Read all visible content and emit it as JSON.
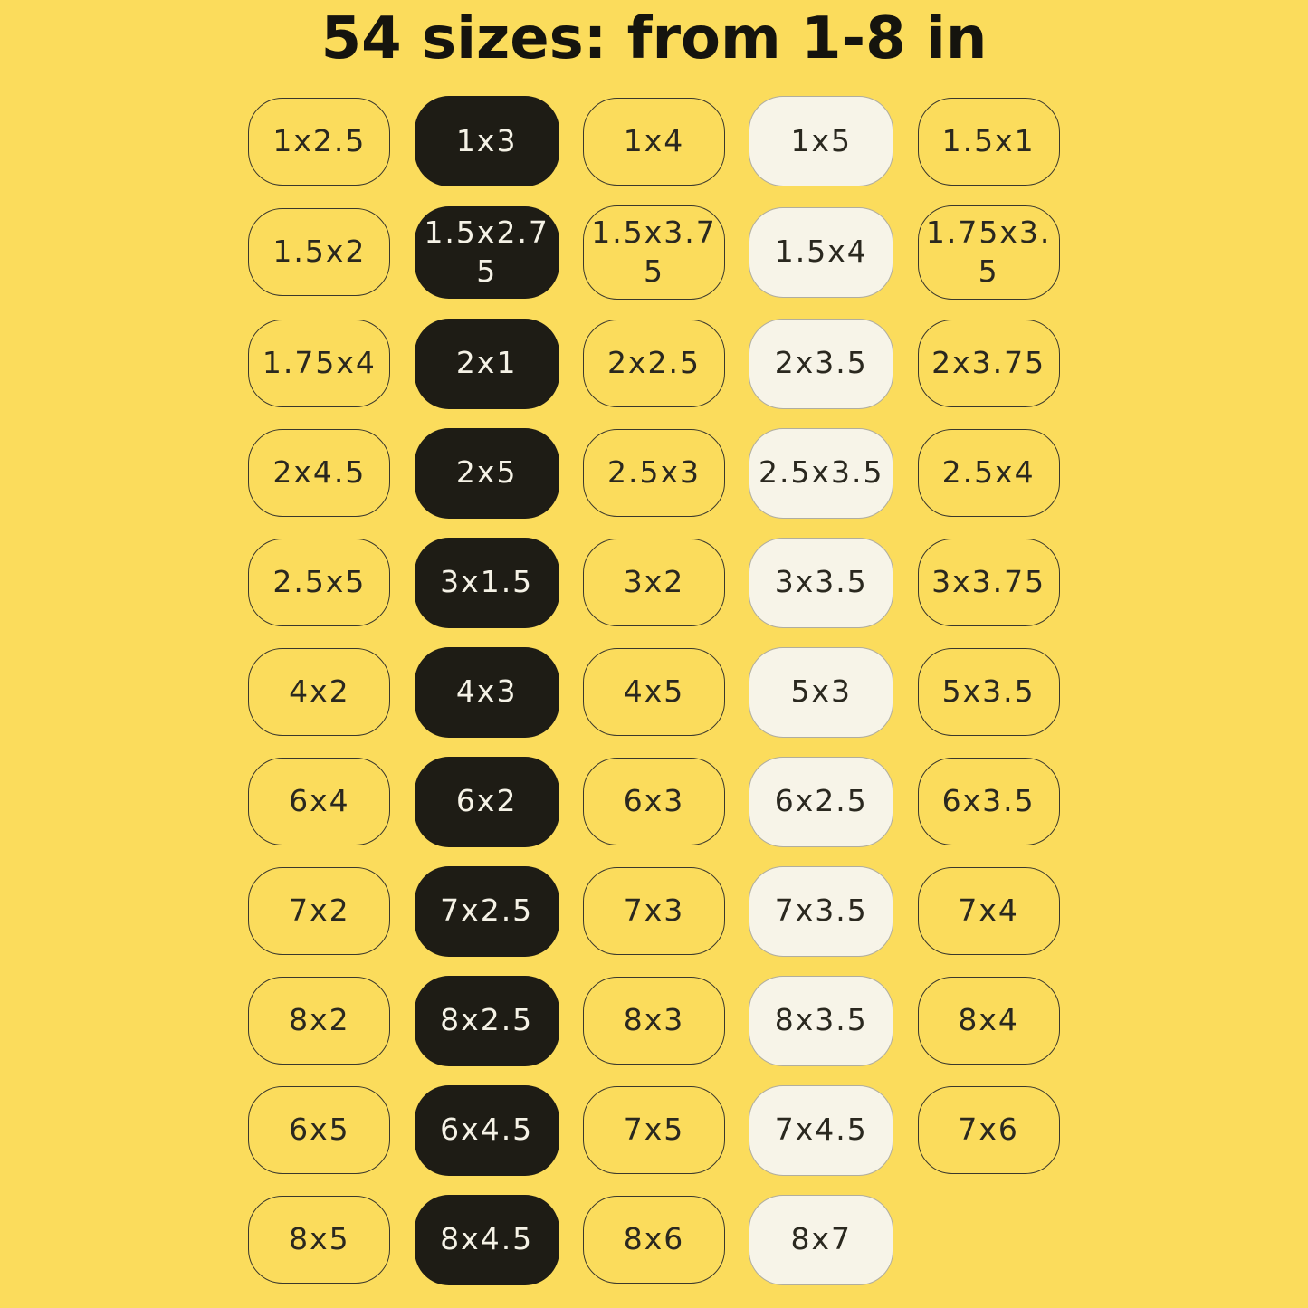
{
  "title": "54 sizes: from 1-8 in",
  "colors": {
    "background": "#FBDC5C",
    "pill_dark_bg": "#1E1C15",
    "pill_dark_text": "#F5F2E6",
    "pill_cream_bg": "#F7F4E8",
    "pill_outline_border": "#3A382C",
    "pill_text": "#2A281F",
    "title_text": "#15140E"
  },
  "grid": {
    "rows": [
      {
        "cells": [
          {
            "label": "1x2.5",
            "variant": "outline"
          },
          {
            "label": "1x3",
            "variant": "dark"
          },
          {
            "label": "1x4",
            "variant": "outline"
          },
          {
            "label": "1x5",
            "variant": "cream"
          },
          {
            "label": "1.5x1",
            "variant": "outline"
          }
        ]
      },
      {
        "cells": [
          {
            "label": "1.5x2",
            "variant": "outline"
          },
          {
            "label": "1.5x2.75",
            "variant": "dark"
          },
          {
            "label": "1.5x3.75",
            "variant": "outline"
          },
          {
            "label": "1.5x4",
            "variant": "cream"
          },
          {
            "label": "1.75x3.5",
            "variant": "outline"
          }
        ]
      },
      {
        "cells": [
          {
            "label": "1.75x4",
            "variant": "outline"
          },
          {
            "label": "2x1",
            "variant": "dark"
          },
          {
            "label": "2x2.5",
            "variant": "outline"
          },
          {
            "label": "2x3.5",
            "variant": "cream"
          },
          {
            "label": "2x3.75",
            "variant": "outline"
          }
        ]
      },
      {
        "cells": [
          {
            "label": "2x4.5",
            "variant": "outline"
          },
          {
            "label": "2x5",
            "variant": "dark"
          },
          {
            "label": "2.5x3",
            "variant": "outline"
          },
          {
            "label": "2.5x3.5",
            "variant": "cream"
          },
          {
            "label": "2.5x4",
            "variant": "outline"
          }
        ]
      },
      {
        "cells": [
          {
            "label": "2.5x5",
            "variant": "outline"
          },
          {
            "label": "3x1.5",
            "variant": "dark"
          },
          {
            "label": "3x2",
            "variant": "outline"
          },
          {
            "label": "3x3.5",
            "variant": "cream"
          },
          {
            "label": "3x3.75",
            "variant": "outline"
          }
        ]
      },
      {
        "cells": [
          {
            "label": "4x2",
            "variant": "outline"
          },
          {
            "label": "4x3",
            "variant": "dark"
          },
          {
            "label": "4x5",
            "variant": "outline"
          },
          {
            "label": "5x3",
            "variant": "cream"
          },
          {
            "label": "5x3.5",
            "variant": "outline"
          }
        ]
      },
      {
        "cells": [
          {
            "label": "6x4",
            "variant": "outline"
          },
          {
            "label": "6x2",
            "variant": "dark"
          },
          {
            "label": "6x3",
            "variant": "outline"
          },
          {
            "label": "6x2.5",
            "variant": "cream"
          },
          {
            "label": "6x3.5",
            "variant": "outline"
          }
        ]
      },
      {
        "cells": [
          {
            "label": "7x2",
            "variant": "outline"
          },
          {
            "label": "7x2.5",
            "variant": "dark"
          },
          {
            "label": "7x3",
            "variant": "outline"
          },
          {
            "label": "7x3.5",
            "variant": "cream"
          },
          {
            "label": "7x4",
            "variant": "outline"
          }
        ]
      },
      {
        "cells": [
          {
            "label": "8x2",
            "variant": "outline"
          },
          {
            "label": "8x2.5",
            "variant": "dark"
          },
          {
            "label": "8x3",
            "variant": "outline"
          },
          {
            "label": "8x3.5",
            "variant": "cream"
          },
          {
            "label": "8x4",
            "variant": "outline"
          }
        ]
      },
      {
        "cells": [
          {
            "label": "6x5",
            "variant": "outline"
          },
          {
            "label": "6x4.5",
            "variant": "dark"
          },
          {
            "label": "7x5",
            "variant": "outline"
          },
          {
            "label": "7x4.5",
            "variant": "cream"
          },
          {
            "label": "7x6",
            "variant": "outline"
          }
        ]
      },
      {
        "cells": [
          {
            "label": "8x5",
            "variant": "outline"
          },
          {
            "label": "8x4.5",
            "variant": "dark"
          },
          {
            "label": "8x6",
            "variant": "outline"
          },
          {
            "label": "8x7",
            "variant": "cream"
          }
        ]
      }
    ]
  }
}
